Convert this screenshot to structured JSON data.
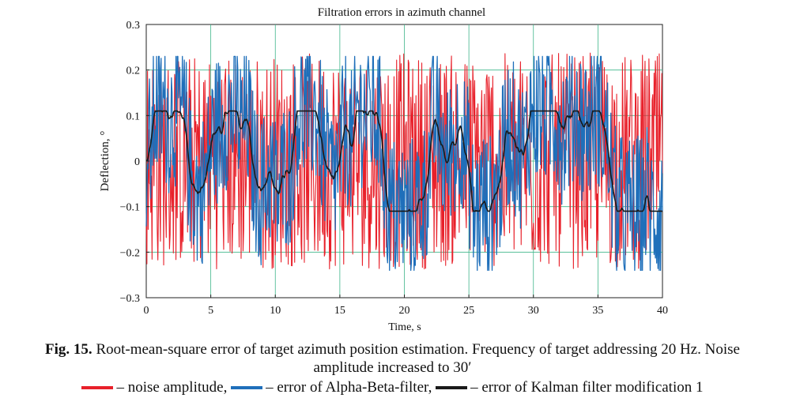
{
  "chart_data": {
    "type": "line",
    "title": "Filtration errors in azimuth channel",
    "xlabel": "Time, s",
    "ylabel": "Deflection, °",
    "xlim": [
      0,
      40
    ],
    "ylim": [
      -0.3,
      0.3
    ],
    "x_ticks": [
      "0",
      "5",
      "10",
      "15",
      "20",
      "25",
      "30",
      "35",
      "40"
    ],
    "y_ticks": [
      "0.3",
      "0.2",
      "0.1",
      "0",
      "−0.1",
      "−0.2",
      "−0.3"
    ],
    "grid": true,
    "sample_rate_hz": 20,
    "series": [
      {
        "name": "noise amplitude",
        "color": "#e8202a",
        "summary": {
          "amplitude_deg": 0.25,
          "mean": 0.0
        }
      },
      {
        "name": "error of Alpha-Beta-filter",
        "color": "#1f6fba",
        "summary": {
          "amplitude_deg": 0.21,
          "mean": 0.0
        }
      },
      {
        "name": "error of Kalman filter modification 1",
        "color": "#1a1a1a",
        "summary": {
          "amplitude_deg": 0.11,
          "mean": 0.0
        }
      }
    ]
  },
  "caption": {
    "fig_label": "Fig. 15.",
    "text_line1": " Root-mean-square error of target azimuth position estimation. Frequency of target addressing 20 Hz. Noise",
    "text_line2": "amplitude increased to 30′"
  },
  "legend": {
    "item1": "– noise amplitude,",
    "item2": "– error of Alpha-Beta-filter,",
    "item3": "– error of Kalman filter modification 1",
    "color1": "#e8202a",
    "color2": "#1f6fba",
    "color3": "#1a1a1a"
  }
}
